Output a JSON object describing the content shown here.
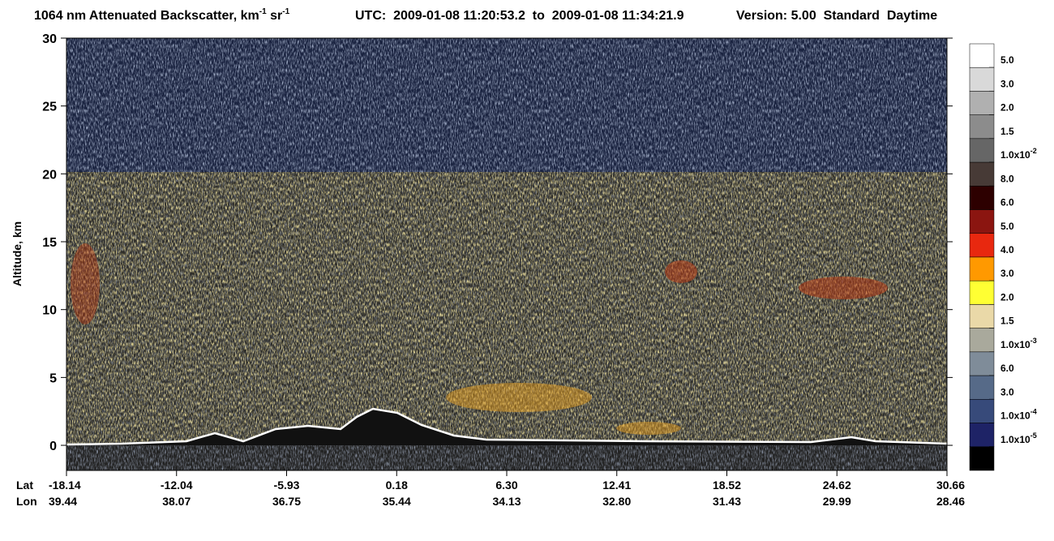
{
  "chart_data": {
    "type": "curtain",
    "title_parts": [
      "1064 nm Attenuated Backscatter, km",
      "-1",
      " sr",
      "-1"
    ],
    "utc": "UTC:  2009-01-08 11:20:53.2  to  2009-01-08 11:34:21.9",
    "version": "Version: 5.00  Standard  Daytime",
    "ylabel": "Altitude, km",
    "ylim": [
      -1.85,
      30
    ],
    "yticks": [
      0,
      5,
      10,
      15,
      20,
      25,
      30
    ],
    "lat_label": "Lat",
    "lon_label": "Lon",
    "lat": [
      "-18.14",
      "-12.04",
      "-5.93",
      "0.18",
      "6.30",
      "12.41",
      "18.52",
      "24.62",
      "30.66"
    ],
    "lon": [
      "39.44",
      "38.07",
      "36.75",
      "35.44",
      "34.13",
      "32.80",
      "31.43",
      "29.99",
      "28.46"
    ],
    "colorbar": [
      {
        "color": "#ffffff",
        "label": "5.0"
      },
      {
        "color": "#d9d9d9",
        "label": "3.0"
      },
      {
        "color": "#b0b0b0",
        "label": "2.0"
      },
      {
        "color": "#8c8c8c",
        "label": "1.5"
      },
      {
        "color": "#666666",
        "label": "1.0x10",
        "sup": "-2"
      },
      {
        "color": "#473a36",
        "label": "8.0"
      },
      {
        "color": "#2d0000",
        "label": "6.0"
      },
      {
        "color": "#8b1510",
        "label": "5.0"
      },
      {
        "color": "#e8280f",
        "label": "4.0"
      },
      {
        "color": "#ff9900",
        "label": "3.0"
      },
      {
        "color": "#ffff33",
        "label": "2.0"
      },
      {
        "color": "#ead9a8",
        "label": "1.5"
      },
      {
        "color": "#a9a99c",
        "label": "1.0x10",
        "sup": "-3"
      },
      {
        "color": "#7f8c99",
        "label": "6.0"
      },
      {
        "color": "#566a88",
        "label": "3.0"
      },
      {
        "color": "#374a7a",
        "label": "1.0x10",
        "sup": "-4"
      },
      {
        "color": "#1e2366",
        "label": "1.0x10",
        "sup": "-5"
      },
      {
        "color": "#000000"
      }
    ]
  }
}
